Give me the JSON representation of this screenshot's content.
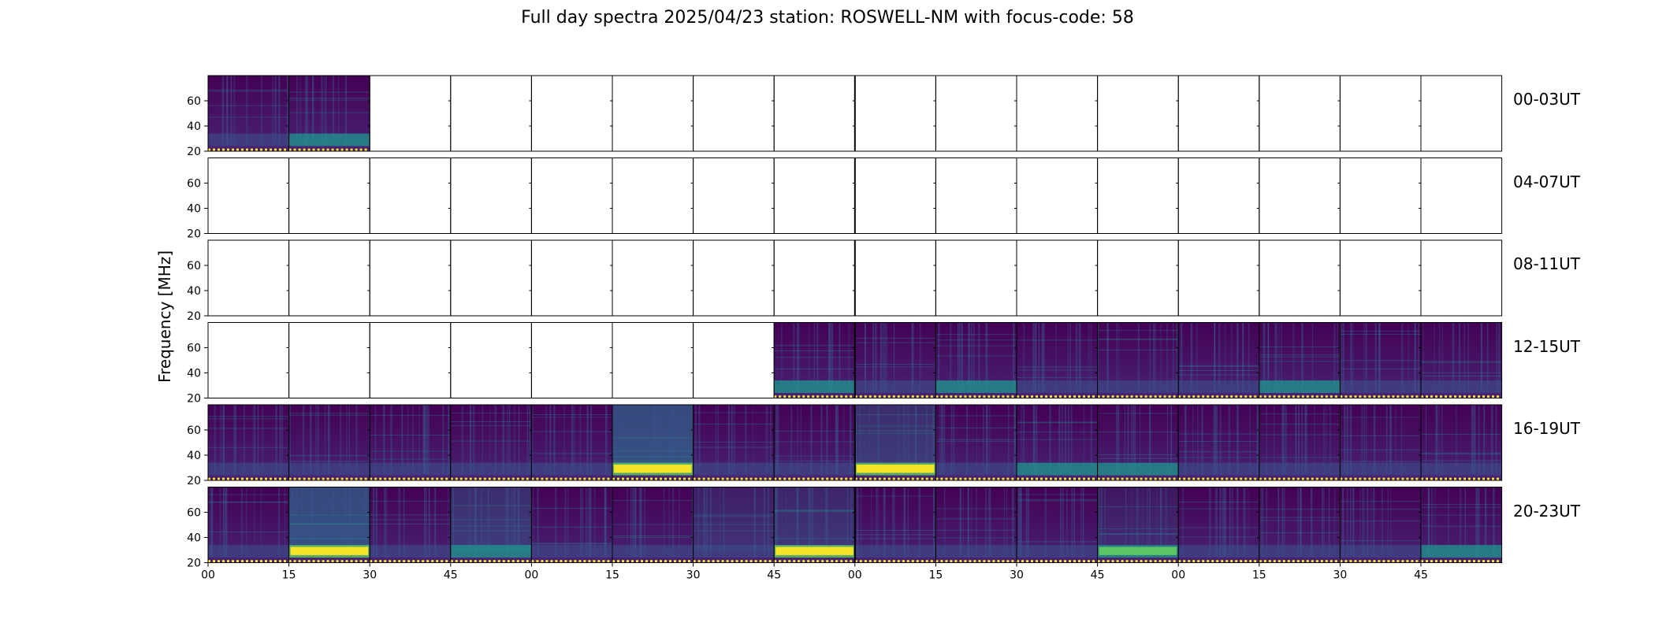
{
  "title": "Full day spectra 2025/04/23 station: ROSWELL-NM with focus-code: 58",
  "chart_data": {
    "type": "heatmap",
    "title": "Full day spectra 2025/04/23 station: ROSWELL-NM with focus-code: 58",
    "ylabel": "Frequency [MHz]",
    "xlabel": "",
    "ylim": [
      20,
      80
    ],
    "yticks": [
      20,
      40,
      60
    ],
    "xtick_labels": [
      "00",
      "15",
      "30",
      "45",
      "00",
      "15",
      "30",
      "45",
      "00",
      "15",
      "30",
      "45",
      "00",
      "15",
      "30",
      "45"
    ],
    "colormap": "viridis",
    "panels_per_row": 16,
    "rows": [
      {
        "label": "00-03UT",
        "data_panels": [
          0,
          1
        ]
      },
      {
        "label": "04-07UT",
        "data_panels": []
      },
      {
        "label": "08-11UT",
        "data_panels": []
      },
      {
        "label": "12-15UT",
        "data_panels": [
          7,
          8,
          9,
          10,
          11,
          12,
          13,
          14,
          15
        ]
      },
      {
        "label": "16-19UT",
        "data_panels": [
          0,
          1,
          2,
          3,
          4,
          5,
          6,
          7,
          8,
          9,
          10,
          11,
          12,
          13,
          14,
          15
        ]
      },
      {
        "label": "20-23UT",
        "data_panels": [
          0,
          1,
          2,
          3,
          4,
          5,
          6,
          7,
          8,
          9,
          10,
          11,
          12,
          13,
          14,
          15
        ]
      }
    ],
    "colors": {
      "background": "#440154",
      "low": "#3b528b",
      "mid": "#21918c",
      "high": "#5ec962",
      "peak": "#fde725"
    }
  }
}
